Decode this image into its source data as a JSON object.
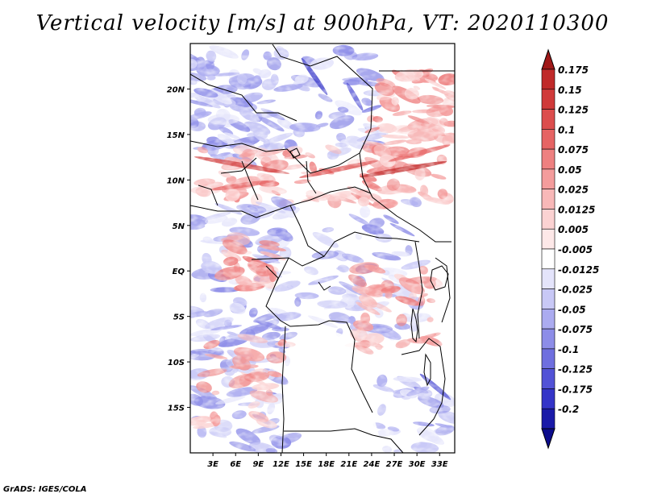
{
  "title": "Vertical velocity [m/s] at 900hPa, VT: 2020110300",
  "credit": "GrADS: IGES/COLA",
  "chart_data": {
    "type": "heatmap",
    "variable": "Vertical velocity",
    "units": "m/s",
    "level": "900hPa",
    "valid_time": "2020110300",
    "xlim": [
      0,
      35
    ],
    "ylim": [
      -20,
      25
    ],
    "x_ticks": [
      {
        "value": 3,
        "label": "3E"
      },
      {
        "value": 6,
        "label": "6E"
      },
      {
        "value": 9,
        "label": "9E"
      },
      {
        "value": 12,
        "label": "12E"
      },
      {
        "value": 15,
        "label": "15E"
      },
      {
        "value": 18,
        "label": "18E"
      },
      {
        "value": 21,
        "label": "21E"
      },
      {
        "value": 24,
        "label": "24E"
      },
      {
        "value": 27,
        "label": "27E"
      },
      {
        "value": 30,
        "label": "30E"
      },
      {
        "value": 33,
        "label": "33E"
      }
    ],
    "y_ticks": [
      {
        "value": 20,
        "label": "20N"
      },
      {
        "value": 15,
        "label": "15N"
      },
      {
        "value": 10,
        "label": "10N"
      },
      {
        "value": 5,
        "label": "5N"
      },
      {
        "value": 0,
        "label": "EQ"
      },
      {
        "value": -5,
        "label": "5S"
      },
      {
        "value": -10,
        "label": "10S"
      },
      {
        "value": -15,
        "label": "15S"
      }
    ],
    "colorbar": {
      "levels": [
        {
          "label": "0.175",
          "color": "#c02a2a"
        },
        {
          "label": "0.15",
          "color": "#d03a3a"
        },
        {
          "label": "0.125",
          "color": "#dc4d4d"
        },
        {
          "label": "0.1",
          "color": "#e66464"
        },
        {
          "label": "0.075",
          "color": "#ee8080"
        },
        {
          "label": "0.05",
          "color": "#f49c9c"
        },
        {
          "label": "0.025",
          "color": "#f8b8b8"
        },
        {
          "label": "0.0125",
          "color": "#fbd2d2"
        },
        {
          "label": "0.005",
          "color": "#fde8e8"
        },
        {
          "label": "-0.005",
          "color": "#ffffff"
        },
        {
          "label": "-0.0125",
          "color": "#e4e4fb"
        },
        {
          "label": "-0.025",
          "color": "#c8c8f6"
        },
        {
          "label": "-0.05",
          "color": "#ababf0"
        },
        {
          "label": "-0.075",
          "color": "#8d8de8"
        },
        {
          "label": "-0.1",
          "color": "#6f6fdf"
        },
        {
          "label": "-0.125",
          "color": "#5252d6"
        },
        {
          "label": "-0.175",
          "color": "#3434c8"
        },
        {
          "label": "-0.2",
          "color": "#1a1aa8"
        }
      ],
      "top_color": "#a01818",
      "bottom_color": "#0c0c8c"
    }
  }
}
